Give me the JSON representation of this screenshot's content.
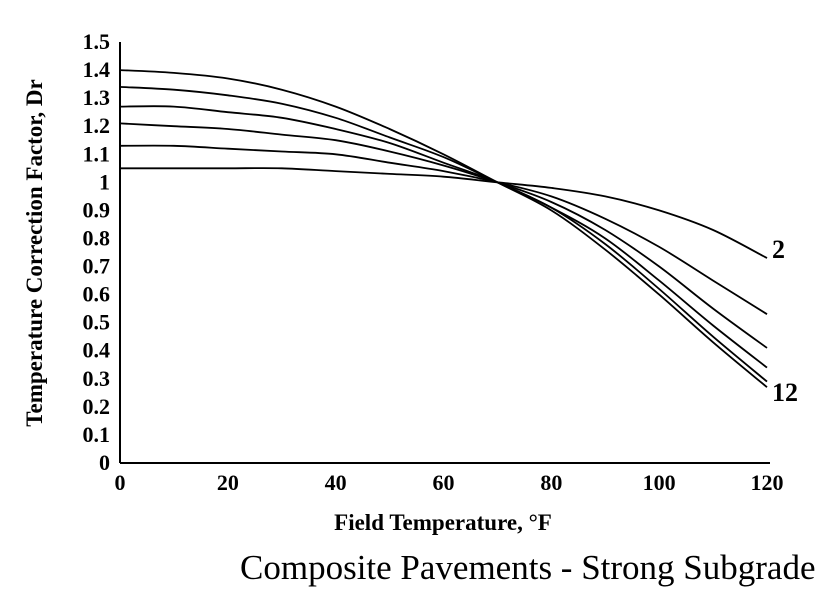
{
  "chart_data": {
    "type": "line",
    "title": "Composite Pavements - Strong Subgrade",
    "xlabel": "Field Temperature, °F",
    "ylabel": "Temperature Correction Factor, Dr",
    "xlim": [
      0,
      120
    ],
    "ylim": [
      0,
      1.5
    ],
    "xticks": [
      "0",
      "20",
      "40",
      "60",
      "80",
      "100",
      "120"
    ],
    "yticks": [
      "0",
      "0.1",
      "0.2",
      "0.3",
      "0.4",
      "0.5",
      "0.6",
      "0.7",
      "0.8",
      "0.9",
      "1",
      "1.1",
      "1.2",
      "1.3",
      "1.4",
      "1.5"
    ],
    "grid": false,
    "x": [
      0,
      10,
      20,
      30,
      40,
      50,
      60,
      70,
      80,
      90,
      100,
      110,
      120
    ],
    "series": [
      {
        "values": [
          1.4,
          1.39,
          1.37,
          1.33,
          1.27,
          1.19,
          1.1,
          1.0,
          0.9,
          0.76,
          0.6,
          0.43,
          0.27
        ]
      },
      {
        "values": [
          1.34,
          1.33,
          1.31,
          1.28,
          1.23,
          1.16,
          1.09,
          1.0,
          0.91,
          0.78,
          0.62,
          0.45,
          0.29
        ]
      },
      {
        "values": [
          1.27,
          1.27,
          1.25,
          1.23,
          1.19,
          1.14,
          1.07,
          1.0,
          0.91,
          0.8,
          0.65,
          0.49,
          0.34
        ]
      },
      {
        "values": [
          1.21,
          1.2,
          1.19,
          1.17,
          1.15,
          1.11,
          1.06,
          1.0,
          0.93,
          0.83,
          0.7,
          0.55,
          0.41
        ]
      },
      {
        "values": [
          1.13,
          1.13,
          1.12,
          1.11,
          1.1,
          1.07,
          1.04,
          1.0,
          0.95,
          0.87,
          0.77,
          0.65,
          0.53
        ]
      },
      {
        "values": [
          1.05,
          1.05,
          1.05,
          1.05,
          1.04,
          1.03,
          1.02,
          1.0,
          0.98,
          0.95,
          0.9,
          0.83,
          0.73
        ]
      }
    ],
    "annotations": [
      "2",
      "12"
    ]
  }
}
